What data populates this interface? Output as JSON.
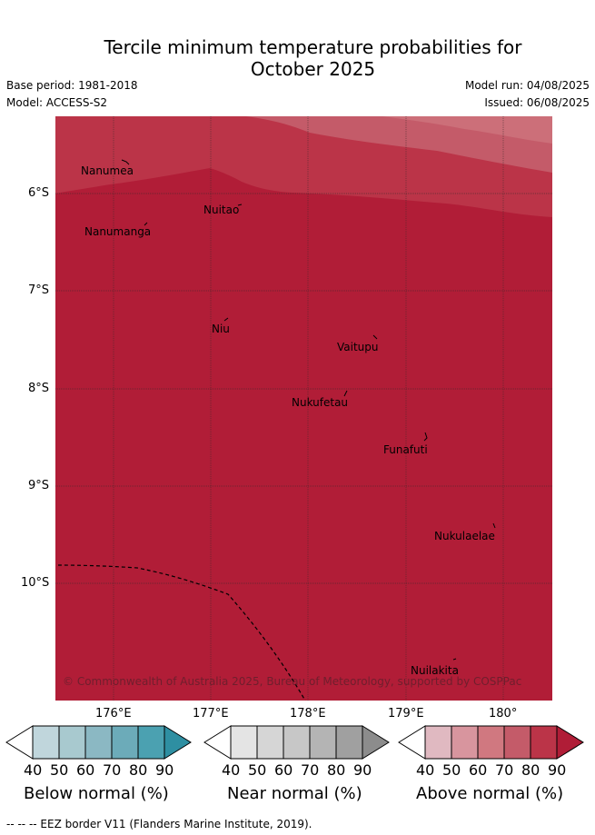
{
  "title": "Tercile minimum temperature probabilities for October 2025",
  "title_line1": "Tercile minimum temperature probabilities for",
  "title_line2": "October 2025",
  "base_period": "Base period: 1981-2018",
  "model": "Model: ACCESS-S2",
  "model_run": "Model run: 04/08/2025",
  "issued": "Issued: 06/08/2025",
  "copyright": "© Commonwealth of Australia 2025, Bureau of Meteorology, supported by COSPPac",
  "axis": {
    "lat_ticks": [
      "6°S",
      "7°S",
      "8°S",
      "9°S",
      "10°S"
    ],
    "lon_ticks": [
      "176°E",
      "177°E",
      "178°E",
      "179°E",
      "180°"
    ]
  },
  "islands": [
    {
      "name": "Nanumea"
    },
    {
      "name": "Nuitao"
    },
    {
      "name": "Nanumanga"
    },
    {
      "name": "Niu"
    },
    {
      "name": "Vaitupu"
    },
    {
      "name": "Nukufetau"
    },
    {
      "name": "Funafuti"
    },
    {
      "name": "Nukulaelae"
    },
    {
      "name": "Nuilakita"
    }
  ],
  "colorbars": [
    {
      "label": "Below normal (%)",
      "ticks": [
        "40",
        "50",
        "60",
        "70",
        "80",
        "90"
      ],
      "colors": [
        "#c0d6dc",
        "#a8c9cf",
        "#8bb8c3",
        "#6cabb9",
        "#4ba1b1",
        "#2e8fa2"
      ]
    },
    {
      "label": "Near normal (%)",
      "ticks": [
        "40",
        "50",
        "60",
        "70",
        "80",
        "90"
      ],
      "colors": [
        "#e4e4e4",
        "#d6d6d6",
        "#c7c7c7",
        "#b4b4b4",
        "#a0a0a0",
        "#8c8c8c"
      ]
    },
    {
      "label": "Above normal (%)",
      "ticks": [
        "40",
        "50",
        "60",
        "70",
        "80",
        "90"
      ],
      "colors": [
        "#e0b9c1",
        "#d8959e",
        "#d07880",
        "#c45b69",
        "#bb3448",
        "#b01d37"
      ]
    }
  ],
  "footnote": "--  --  -- EEZ border V11 (Flanders Marine Institute, 2019).",
  "colors": {
    "above_90": "#b11d37",
    "above_80": "#bb3448",
    "above_70": "#c45b69",
    "above_60": "#cc6f79",
    "gridline": "#333333"
  }
}
